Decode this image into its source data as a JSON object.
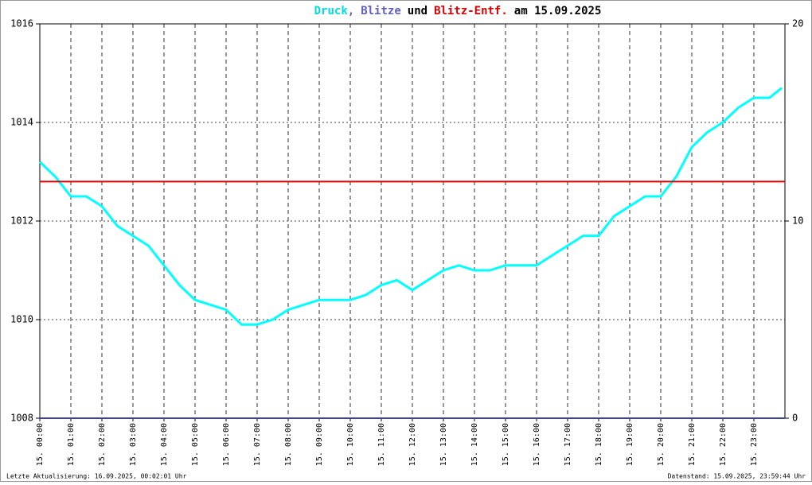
{
  "chart_data": {
    "type": "line",
    "title_joins": [
      ",",
      "und",
      "am 15.09.2025"
    ],
    "footer_left": "Letzte Aktualisierung: 16.09.2025, 00:02:01 Uhr",
    "footer_right": "Datenstand: 15.09.2025, 23:59:44 Uhr",
    "xlim": [
      0,
      24
    ],
    "xticks": [
      {
        "value": 0,
        "label": "15. 00:00"
      },
      {
        "value": 1,
        "label": "15. 01:00"
      },
      {
        "value": 2,
        "label": "15. 02:00"
      },
      {
        "value": 3,
        "label": "15. 03:00"
      },
      {
        "value": 4,
        "label": "15. 04:00"
      },
      {
        "value": 5,
        "label": "15. 05:00"
      },
      {
        "value": 6,
        "label": "15. 06:00"
      },
      {
        "value": 7,
        "label": "15. 07:00"
      },
      {
        "value": 8,
        "label": "15. 08:00"
      },
      {
        "value": 9,
        "label": "15. 09:00"
      },
      {
        "value": 10,
        "label": "15. 10:00"
      },
      {
        "value": 11,
        "label": "15. 11:00"
      },
      {
        "value": 12,
        "label": "15. 12:00"
      },
      {
        "value": 13,
        "label": "15. 13:00"
      },
      {
        "value": 14,
        "label": "15. 14:00"
      },
      {
        "value": 15,
        "label": "15. 15:00"
      },
      {
        "value": 16,
        "label": "15. 16:00"
      },
      {
        "value": 17,
        "label": "15. 17:00"
      },
      {
        "value": 18,
        "label": "15. 18:00"
      },
      {
        "value": 19,
        "label": "15. 19:00"
      },
      {
        "value": 20,
        "label": "15. 20:00"
      },
      {
        "value": 21,
        "label": "15. 21:00"
      },
      {
        "value": 22,
        "label": "15. 22:00"
      },
      {
        "value": 23,
        "label": "15. 23:00"
      }
    ],
    "ylim": [
      1008,
      1016
    ],
    "yticks": [
      1008,
      1010,
      1012,
      1014,
      1016
    ],
    "y2lim": [
      0,
      20
    ],
    "y2ticks": [
      0,
      10,
      20
    ],
    "y2tick_colors": [
      "#000000",
      "#cc0000",
      "#000000"
    ],
    "grid": true,
    "series": [
      {
        "name": "Druck",
        "color": "#00ffff",
        "x": [
          0,
          0.5,
          1,
          1.5,
          2,
          2.5,
          3,
          3.5,
          4,
          4.5,
          5,
          5.5,
          6,
          6.5,
          7,
          7.5,
          8,
          8.5,
          9,
          9.5,
          10,
          10.5,
          11,
          11.5,
          12,
          12.5,
          13,
          13.5,
          14,
          14.5,
          15,
          15.5,
          16,
          16.5,
          17,
          17.5,
          18,
          18.5,
          19,
          19.5,
          20,
          20.5,
          21,
          21.5,
          22,
          22.5,
          23,
          23.5,
          23.9
        ],
        "values": [
          1013.2,
          1012.9,
          1012.5,
          1012.5,
          1012.3,
          1011.9,
          1011.7,
          1011.5,
          1011.1,
          1010.7,
          1010.4,
          1010.3,
          1010.2,
          1009.9,
          1009.9,
          1010.0,
          1010.2,
          1010.3,
          1010.4,
          1010.4,
          1010.4,
          1010.5,
          1010.7,
          1010.8,
          1010.6,
          1010.8,
          1011.0,
          1011.1,
          1011.0,
          1011.0,
          1011.1,
          1011.1,
          1011.1,
          1011.3,
          1011.5,
          1011.7,
          1011.7,
          1012.1,
          1012.3,
          1012.5,
          1012.5,
          1012.9,
          1013.5,
          1013.8,
          1014.0,
          1014.3,
          1014.5,
          1014.5,
          1014.7
        ]
      },
      {
        "name": "Blitze",
        "color": "#4040a0",
        "title_color": "#6060c0",
        "axis": "y2",
        "x": [
          0,
          24
        ],
        "values": [
          0,
          0
        ]
      },
      {
        "name": "Blitz-Entf.",
        "color": "#dd0000",
        "axis": "y2",
        "x": [
          0,
          24
        ],
        "values": [
          12,
          12
        ]
      }
    ]
  }
}
